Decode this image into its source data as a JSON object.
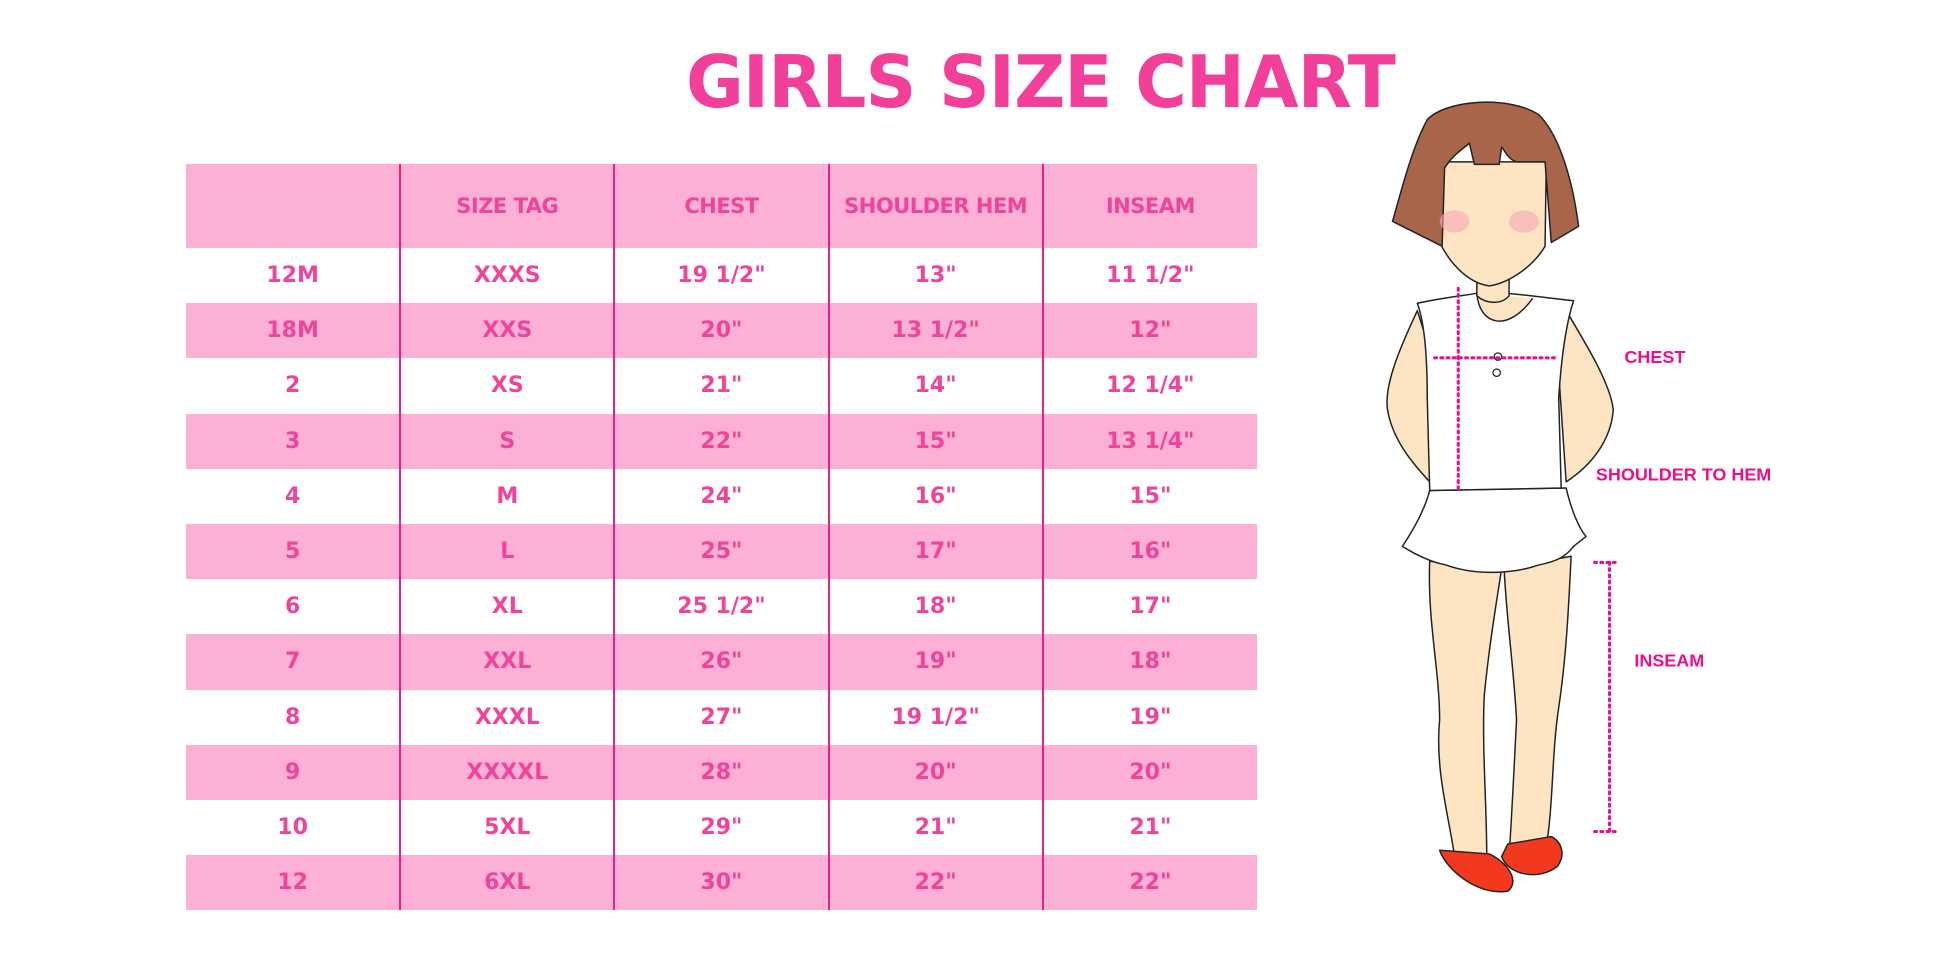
{
  "title": "GIRLS SIZE CHART",
  "table": {
    "headers": [
      "",
      "SIZE TAG",
      "CHEST",
      "SHOULDER HEM",
      "INSEAM"
    ],
    "rows": [
      [
        "12M",
        "XXXS",
        "19 1/2\"",
        "13\"",
        "11 1/2\""
      ],
      [
        "18M",
        "XXS",
        "20\"",
        "13 1/2\"",
        "12\""
      ],
      [
        "2",
        "XS",
        "21\"",
        "14\"",
        "12 1/4\""
      ],
      [
        "3",
        "S",
        "22\"",
        "15\"",
        "13 1/4\""
      ],
      [
        "4",
        "M",
        "24\"",
        "16\"",
        "15\""
      ],
      [
        "5",
        "L",
        "25\"",
        "17\"",
        "16\""
      ],
      [
        "6",
        "XL",
        "25 1/2\"",
        "18\"",
        "17\""
      ],
      [
        "7",
        "XXL",
        "26\"",
        "19\"",
        "18\""
      ],
      [
        "8",
        "XXXL",
        "27\"",
        "19 1/2\"",
        "19\""
      ],
      [
        "9",
        "XXXXL",
        "28\"",
        "20\"",
        "20\""
      ],
      [
        "10",
        "5XL",
        "29\"",
        "21\"",
        "21\""
      ],
      [
        "12",
        "6XL",
        "30\"",
        "22\"",
        "22\""
      ]
    ]
  },
  "figure": {
    "labels": {
      "chest": "CHEST",
      "shoulder_to_hem": "SHOULDER TO HEM",
      "inseam": "INSEAM"
    }
  },
  "colors": {
    "accent": "#f0449b",
    "stripe": "#fdb0d5",
    "divider": "#e3208b"
  }
}
